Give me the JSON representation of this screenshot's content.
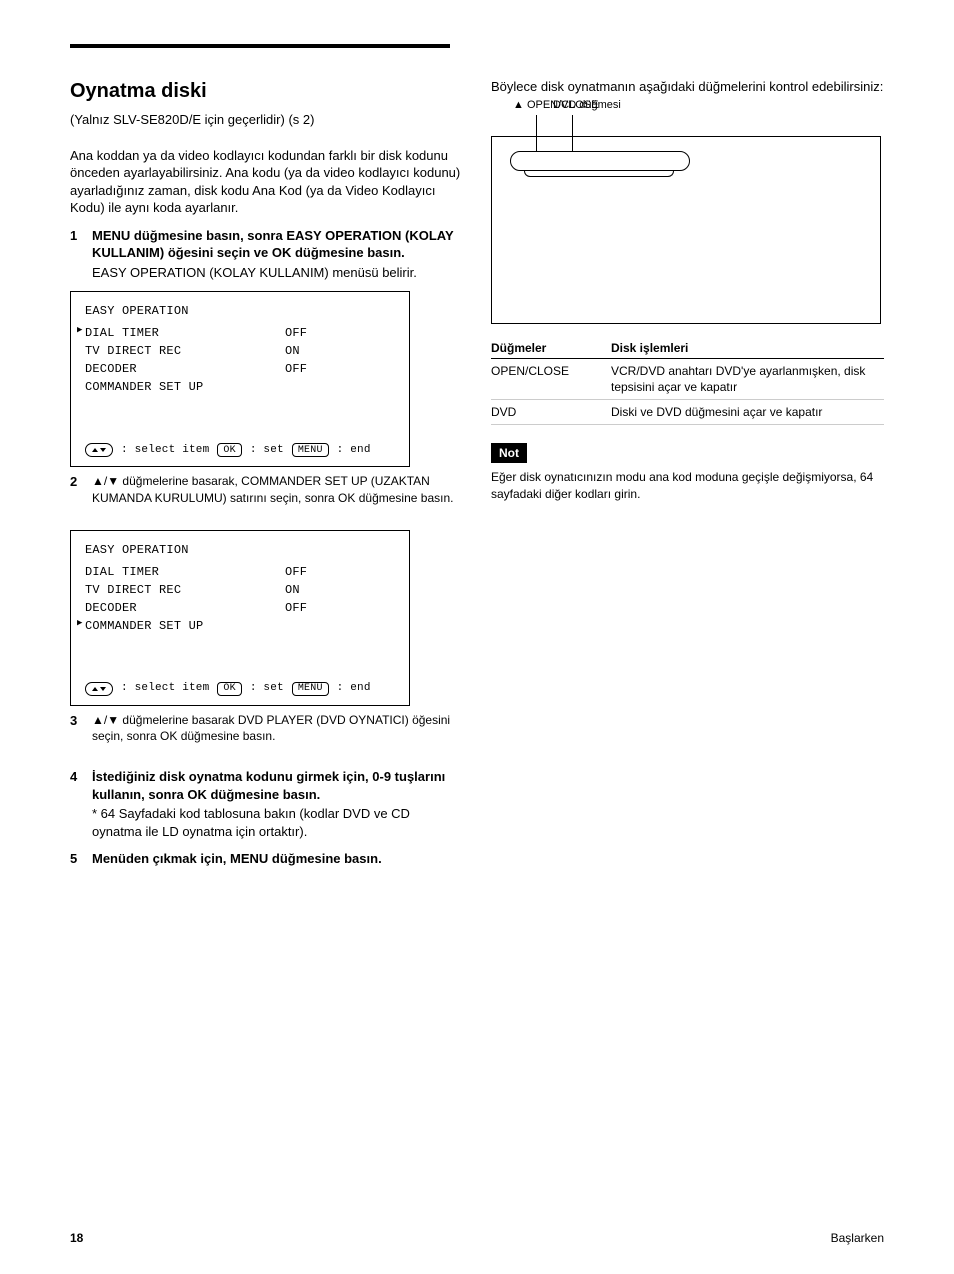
{
  "rule_color": "#000000",
  "section": {
    "title": "Oynatma diski",
    "page_ref": "(Yalnız SLV-SE820D/E için geçerlidir) (s 2)",
    "intro_p1": "Ana koddan ya da video kodlayıcı kodundan farklı bir disk kodunu önceden ayarlayabilirsiniz. Ana kodu (ya da video kodlayıcı kodunu) ayarladığınız zaman, disk kodu Ana Kod (ya da Video Kodlayıcı Kodu) ile aynı koda ayarlanır.",
    "step1": {
      "main": "MENU düğmesine basın, sonra EASY OPERATION (KOLAY KULLANIM) öğesini seçin ve OK düğmesine basın.",
      "after": "EASY OPERATION (KOLAY KULLANIM) menüsü belirir."
    },
    "screen1": {
      "title": "EASY OPERATION",
      "items": [
        "DIAL TIMER",
        "TV DIRECT REC",
        "DECODER",
        "COMMANDER SET UP"
      ],
      "values": [
        "OFF",
        "ON",
        "OFF",
        ""
      ],
      "cursor_index": 0,
      "hint_select": ": select  item",
      "hint_set": "OK",
      "hint_set_label": ": set",
      "hint_end": "MENU",
      "hint_end_label": ": end"
    },
    "caption1_pre": "▲/▼ düğmelerine basarak, COMMANDER SET UP (UZAKTAN KUMANDA KURULUMU) satırını seçin, sonra OK düğmesine basın.",
    "screen2": {
      "title": "EASY OPERATION",
      "items": [
        "DIAL TIMER",
        "TV DIRECT REC",
        "DECODER",
        "COMMANDER SET UP"
      ],
      "values": [
        "OFF",
        "ON",
        "OFF",
        ""
      ],
      "cursor_index": 3,
      "hint_select": ": select  item",
      "hint_set": "OK",
      "hint_set_label": ": set",
      "hint_end": "MENU",
      "hint_end_label": ": end"
    },
    "caption2_pre": "▲/▼ düğmelerine basarak DVD PLAYER (DVD OYNATICI) öğesini seçin, sonra OK düğmesine basın.",
    "step4": {
      "main": "İstediğiniz disk oynatma kodunu girmek için, 0-9 tuşlarını kullanın, sonra OK düğmesine basın.",
      "sub": "*  64 Sayfadaki kod tablosuna bakın (kodlar DVD ve CD oynatma ile LD oynatma için ortaktır)."
    },
    "step5": "Menüden çıkmak için, MENU düğmesine basın."
  },
  "right": {
    "intro": "Böylece disk oynatmanın aşağıdaki düğmelerini kontrol edebilirsiniz:",
    "label_open": "▲ OPEN/CLOSE",
    "label_bar": "DVD düğmesi",
    "table_title_index": "Düğmeler",
    "table_title_op": "Disk işlemleri",
    "rows": [
      [
        "OPEN/CLOSE",
        "VCR/DVD anahtarı DVD'ye ayarlanmışken, disk tepsisini açar ve kapatır"
      ],
      [
        "DVD",
        "Diski ve DVD düğmesini açar ve kapatır"
      ]
    ],
    "note_head": "Not",
    "note_body": "Eğer disk oynatıcınızın modu ana kod moduna geçişle değişmiyorsa, 64 sayfadaki diğer kodları girin."
  },
  "footer": {
    "page_num": "18",
    "page_label": "Başlarken"
  }
}
